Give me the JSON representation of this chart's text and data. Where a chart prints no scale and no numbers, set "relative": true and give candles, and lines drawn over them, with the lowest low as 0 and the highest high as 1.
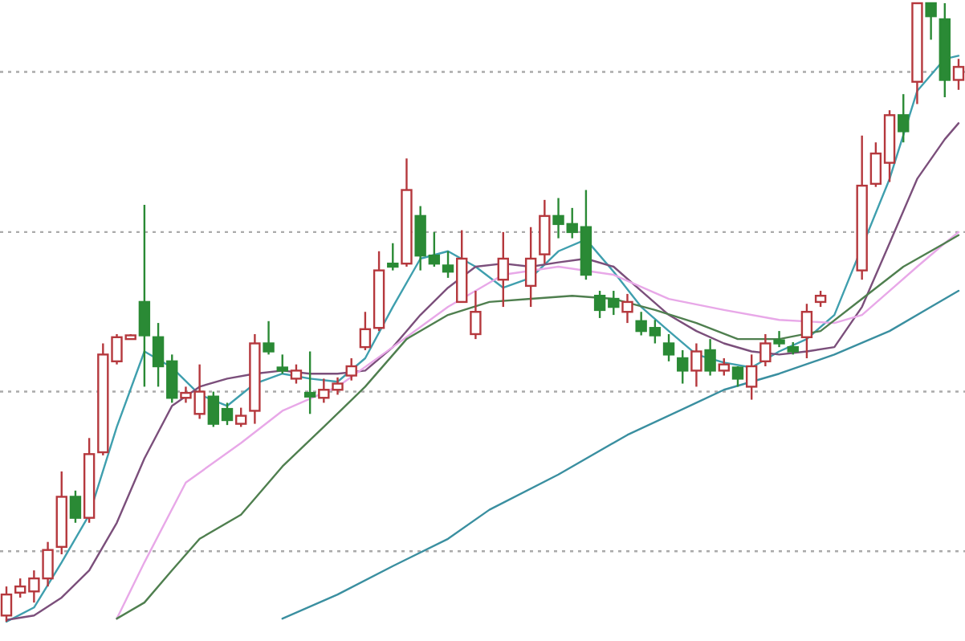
{
  "chart_data": {
    "type": "candlestick",
    "relative": true,
    "tick_labels": false,
    "categories": [
      null,
      null,
      null,
      null,
      null,
      null,
      null,
      null,
      null,
      null,
      null,
      null,
      null,
      null,
      null,
      null,
      null,
      null,
      null,
      null,
      null,
      null,
      null,
      null,
      null,
      null,
      null,
      null,
      null,
      null,
      null,
      null,
      null,
      null,
      null,
      null,
      null,
      null,
      null,
      null,
      null,
      null,
      null,
      null,
      null,
      null,
      null,
      null,
      null,
      null,
      null,
      null,
      null,
      null,
      null,
      null,
      null,
      null,
      null,
      null,
      null,
      null,
      null,
      null,
      null,
      null,
      null,
      null,
      null,
      null
    ],
    "ohlc": [
      [
        0.01,
        0.057,
        0,
        0.044
      ],
      [
        0.047,
        0.07,
        0.039,
        0.057
      ],
      [
        0.049,
        0.083,
        0.031,
        0.07
      ],
      [
        0.07,
        0.129,
        0.057,
        0.116
      ],
      [
        0.121,
        0.243,
        0.109,
        0.202
      ],
      [
        0.202,
        0.212,
        0.16,
        0.168
      ],
      [
        0.168,
        0.297,
        0.16,
        0.271
      ],
      [
        0.274,
        0.45,
        0.269,
        0.432
      ],
      [
        0.421,
        0.465,
        0.416,
        0.46
      ],
      [
        0.457,
        0.465,
        0.457,
        0.463
      ],
      [
        0.517,
        0.674,
        0.38,
        0.463
      ],
      [
        0.46,
        0.483,
        0.38,
        0.413
      ],
      [
        0.421,
        0.432,
        0.354,
        0.362
      ],
      [
        0.362,
        0.38,
        0.354,
        0.37
      ],
      [
        0.336,
        0.416,
        0.328,
        0.372
      ],
      [
        0.364,
        0.372,
        0.315,
        0.32
      ],
      [
        0.344,
        0.354,
        0.318,
        0.326
      ],
      [
        0.32,
        0.346,
        0.315,
        0.333
      ],
      [
        0.341,
        0.465,
        0.32,
        0.45
      ],
      [
        0.45,
        0.486,
        0.432,
        0.437
      ],
      [
        0.411,
        0.432,
        0.401,
        0.406
      ],
      [
        0.393,
        0.416,
        0.385,
        0.406
      ],
      [
        0.37,
        0.437,
        0.336,
        0.364
      ],
      [
        0.362,
        0.393,
        0.354,
        0.375
      ],
      [
        0.375,
        0.395,
        0.367,
        0.385
      ],
      [
        0.398,
        0.426,
        0.39,
        0.413
      ],
      [
        0.444,
        0.501,
        0.439,
        0.473
      ],
      [
        0.475,
        0.599,
        0.47,
        0.568
      ],
      [
        0.579,
        0.612,
        0.568,
        0.574
      ],
      [
        0.579,
        0.749,
        0.574,
        0.698
      ],
      [
        0.656,
        0.672,
        0.568,
        0.592
      ],
      [
        0.592,
        0.63,
        0.574,
        0.579
      ],
      [
        0.576,
        0.599,
        0.556,
        0.566
      ],
      [
        0.517,
        0.633,
        0.517,
        0.587
      ],
      [
        0.465,
        0.535,
        0.457,
        0.501
      ],
      null,
      [
        0.553,
        0.63,
        0.509,
        0.587
      ],
      null,
      [
        0.543,
        0.638,
        0.509,
        0.587
      ],
      [
        0.594,
        0.682,
        0.579,
        0.656
      ],
      [
        0.656,
        0.685,
        0.62,
        0.643
      ],
      [
        0.643,
        0.669,
        0.62,
        0.63
      ],
      [
        0.638,
        0.698,
        0.553,
        0.561
      ],
      [
        0.527,
        0.535,
        0.491,
        0.504
      ],
      [
        0.522,
        0.535,
        0.496,
        0.509
      ],
      [
        0.501,
        0.53,
        0.483,
        0.517
      ],
      [
        0.486,
        0.501,
        0.463,
        0.47
      ],
      [
        0.475,
        0.488,
        0.45,
        0.463
      ],
      [
        0.45,
        0.465,
        0.421,
        0.432
      ],
      [
        0.426,
        0.439,
        0.385,
        0.406
      ],
      [
        0.406,
        0.45,
        0.38,
        0.437
      ],
      [
        0.439,
        0.457,
        0.398,
        0.406
      ],
      [
        0.406,
        0.426,
        0.398,
        0.416
      ],
      [
        0.411,
        0.413,
        0.38,
        0.393
      ],
      [
        0.38,
        0.432,
        0.359,
        0.413
      ],
      [
        0.421,
        0.465,
        0.413,
        0.45
      ],
      [
        0.455,
        0.47,
        0.444,
        0.45
      ],
      [
        0.444,
        0.452,
        0.432,
        0.437
      ],
      [
        0.46,
        0.514,
        0.426,
        0.501
      ],
      [
        0.517,
        0.535,
        0.509,
        0.527
      ],
      null,
      null,
      [
        0.568,
        0.786,
        0.553,
        0.705
      ],
      [
        0.708,
        0.775,
        0.703,
        0.757
      ],
      [
        0.742,
        0.827,
        0.711,
        0.819
      ],
      [
        0.819,
        0.853,
        0.775,
        0.793
      ],
      [
        0.873,
        1,
        0.837,
        1
      ],
      [
        1,
        1,
        0.941,
        0.979
      ],
      [
        0.974,
        1,
        0.848,
        0.876
      ],
      [
        0.876,
        0.91,
        0.86,
        0.897
      ]
    ],
    "series": [
      {
        "type": "line",
        "color": "#3f9fae",
        "values": [
          0,
          null,
          0.023,
          null,
          0.096,
          null,
          0.173,
          null,
          0.315,
          null,
          0.437,
          null,
          0.411,
          null,
          0.367,
          null,
          0.349,
          null,
          0.385,
          null,
          0.401,
          null,
          0.393,
          null,
          0.388,
          null,
          0.426,
          null,
          0.509,
          null,
          0.587,
          null,
          0.599,
          null,
          0.574,
          null,
          0.54,
          null,
          0.556,
          null,
          0.599,
          null,
          0.618,
          null,
          0.566,
          null,
          0.509,
          null,
          0.47,
          null,
          0.432,
          null,
          0.419,
          null,
          0.411,
          null,
          0.437,
          null,
          0.457,
          null,
          0.496,
          null,
          null,
          null,
          0.716,
          null,
          0.858,
          null,
          0.91,
          0.915
        ]
      },
      {
        "type": "line",
        "color": "#7b4f7b",
        "values": [
          0.003,
          null,
          0.01,
          null,
          0.039,
          null,
          0.083,
          null,
          0.16,
          null,
          0.264,
          null,
          0.349,
          null,
          0.38,
          null,
          0.393,
          null,
          0.401,
          null,
          0.406,
          null,
          0.401,
          null,
          0.401,
          null,
          0.406,
          null,
          0.444,
          null,
          0.496,
          null,
          0.54,
          null,
          0.574,
          null,
          0.579,
          null,
          0.574,
          null,
          0.581,
          null,
          0.587,
          null,
          0.574,
          null,
          0.535,
          null,
          0.496,
          null,
          0.47,
          null,
          0.45,
          null,
          0.437,
          null,
          0.432,
          null,
          0.437,
          null,
          0.444,
          null,
          0.509,
          null,
          0.612,
          null,
          0.716,
          null,
          0.78,
          0.806
        ]
      },
      {
        "type": "line",
        "color": "#e8a8e8",
        "values": [
          null,
          null,
          null,
          null,
          null,
          null,
          null,
          null,
          0.005,
          null,
          0.096,
          null,
          null,
          0.225,
          null,
          null,
          null,
          0.289,
          null,
          null,
          0.341,
          null,
          null,
          null,
          0.38,
          null,
          null,
          null,
          0.444,
          null,
          null,
          null,
          0.509,
          null,
          null,
          null,
          0.561,
          null,
          null,
          null,
          0.574,
          null,
          null,
          null,
          0.561,
          null,
          null,
          null,
          0.522,
          null,
          null,
          null,
          0.504,
          null,
          null,
          null,
          0.488,
          null,
          null,
          null,
          0.483,
          null,
          0.496,
          null,
          0.535,
          null,
          0.574,
          null,
          0.612,
          0.63
        ]
      },
      {
        "type": "line",
        "color": "#4f7f4f",
        "values": [
          null,
          null,
          null,
          null,
          null,
          null,
          null,
          null,
          0.005,
          null,
          0.031,
          null,
          0.083,
          null,
          0.134,
          null,
          null,
          0.173,
          null,
          null,
          0.251,
          null,
          null,
          0.315,
          null,
          null,
          0.38,
          null,
          null,
          0.457,
          null,
          null,
          0.496,
          null,
          null,
          0.517,
          null,
          null,
          0.522,
          null,
          null,
          0.527,
          null,
          null,
          0.522,
          null,
          null,
          0.504,
          null,
          null,
          0.483,
          null,
          null,
          0.457,
          null,
          null,
          0.457,
          null,
          null,
          0.47,
          null,
          null,
          0.522,
          null,
          null,
          0.574,
          null,
          null,
          0.612,
          0.625
        ]
      },
      {
        "type": "line",
        "color": "#3a8fa0",
        "values": [
          null,
          null,
          null,
          null,
          null,
          null,
          null,
          null,
          null,
          null,
          null,
          null,
          null,
          null,
          null,
          null,
          null,
          null,
          null,
          null,
          0.005,
          null,
          null,
          null,
          0.044,
          null,
          null,
          null,
          0.09,
          null,
          null,
          null,
          0.134,
          null,
          null,
          0.181,
          null,
          null,
          null,
          null,
          0.238,
          null,
          null,
          null,
          null,
          0.302,
          null,
          null,
          null,
          null,
          0.354,
          null,
          0.375,
          null,
          null,
          null,
          0.401,
          null,
          null,
          null,
          0.432,
          null,
          null,
          null,
          0.47,
          null,
          null,
          0.509,
          null,
          0.535
        ]
      }
    ],
    "ref_lines": [
      {
        "axis": "y",
        "value": 0.889,
        "color": "#aaaaaa",
        "line_style": "dotted"
      },
      {
        "axis": "y",
        "value": 0.63,
        "color": "#aaaaaa",
        "line_style": "dotted"
      },
      {
        "axis": "y",
        "value": 0.372,
        "color": "#aaaaaa",
        "line_style": "dotted"
      },
      {
        "axis": "y",
        "value": 0.114,
        "color": "#aaaaaa",
        "line_style": "dotted"
      }
    ]
  }
}
